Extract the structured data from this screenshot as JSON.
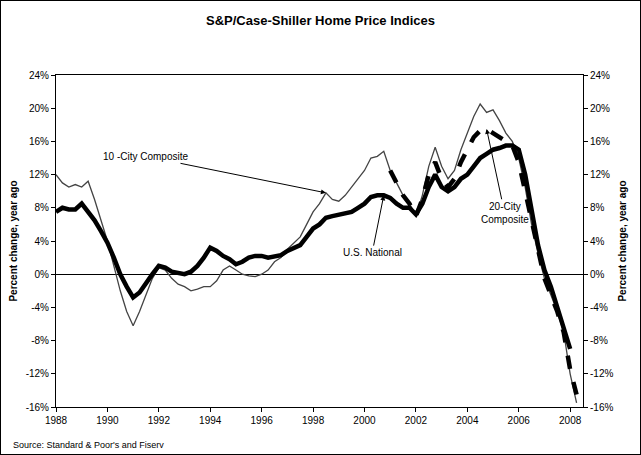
{
  "chart_data": {
    "type": "line",
    "title": "S&P/Case-Shiller Home Price Indices",
    "ylabel": "Percent change, year ago",
    "y2label": "Percent change, year ago",
    "source": "Source: Standard & Poor's and Fiserv",
    "grid": false,
    "xlim": [
      1988,
      2008.5
    ],
    "xticks": [
      1988,
      1990,
      1992,
      1994,
      1996,
      1998,
      2000,
      2002,
      2004,
      2006,
      2008
    ],
    "ylim": [
      -16,
      24
    ],
    "yticks": [
      {
        "value": -16,
        "label": "-16%"
      },
      {
        "value": -12,
        "label": "-12%"
      },
      {
        "value": -8,
        "label": "-8%"
      },
      {
        "value": -4,
        "label": "-4%"
      },
      {
        "value": 0,
        "label": "0%"
      },
      {
        "value": 4,
        "label": "4%"
      },
      {
        "value": 8,
        "label": "8%"
      },
      {
        "value": 12,
        "label": "12%"
      },
      {
        "value": 16,
        "label": "16%"
      },
      {
        "value": 20,
        "label": "20%"
      },
      {
        "value": 24,
        "label": "24%"
      }
    ],
    "y2lim": [
      -16,
      24
    ],
    "y2ticks": [
      {
        "value": -16,
        "label": "-16%"
      },
      {
        "value": -12,
        "label": "-12%"
      },
      {
        "value": -8,
        "label": "-8%"
      },
      {
        "value": -4,
        "label": "-4%"
      },
      {
        "value": 0,
        "label": "0%"
      },
      {
        "value": 4,
        "label": "4%"
      },
      {
        "value": 8,
        "label": "8%"
      },
      {
        "value": 12,
        "label": "12%"
      },
      {
        "value": 16,
        "label": "16%"
      },
      {
        "value": 20,
        "label": "20%"
      },
      {
        "value": 24,
        "label": "24%"
      }
    ],
    "x": [
      1988,
      1988.25,
      1988.5,
      1988.75,
      1989,
      1989.25,
      1989.5,
      1989.75,
      1990,
      1990.25,
      1990.5,
      1990.75,
      1991,
      1991.25,
      1991.5,
      1991.75,
      1992,
      1992.25,
      1992.5,
      1992.75,
      1993,
      1993.25,
      1993.5,
      1993.75,
      1994,
      1994.25,
      1994.5,
      1994.75,
      1995,
      1995.25,
      1995.5,
      1995.75,
      1996,
      1996.25,
      1996.5,
      1996.75,
      1997,
      1997.25,
      1997.5,
      1997.75,
      1998,
      1998.25,
      1998.5,
      1998.75,
      1999,
      1999.25,
      1999.5,
      1999.75,
      2000,
      2000.25,
      2000.5,
      2000.75,
      2001,
      2001.25,
      2001.5,
      2001.75,
      2002,
      2002.25,
      2002.5,
      2002.75,
      2003,
      2003.25,
      2003.5,
      2003.75,
      2004,
      2004.25,
      2004.5,
      2004.75,
      2005,
      2005.25,
      2005.5,
      2005.75,
      2006,
      2006.25,
      2006.5,
      2006.75,
      2007,
      2007.25,
      2007.5,
      2007.75,
      2008,
      2008.25
    ],
    "series": [
      {
        "name": "10 -City Composite",
        "color": "#444444",
        "line_style": "solid",
        "values": [
          12.0,
          11.0,
          10.5,
          10.8,
          10.5,
          11.2,
          9.0,
          6.5,
          4.0,
          1.0,
          -2.0,
          -4.5,
          -6.2,
          -4.5,
          -2.5,
          -0.5,
          0.8,
          0.5,
          -0.5,
          -1.2,
          -1.5,
          -2.0,
          -1.8,
          -1.5,
          -1.5,
          -0.8,
          0.5,
          1.0,
          0.5,
          0.0,
          -0.2,
          -0.3,
          0.0,
          0.5,
          1.5,
          2.0,
          3.0,
          3.8,
          4.5,
          6.0,
          7.5,
          8.5,
          9.8,
          9.0,
          8.8,
          9.5,
          10.5,
          11.5,
          12.5,
          14.0,
          14.2,
          14.8,
          12.5,
          11.0,
          9.5,
          8.5,
          7.0,
          9.5,
          13.0,
          15.3,
          13.0,
          11.5,
          12.5,
          15.0,
          17.0,
          19.0,
          20.5,
          19.5,
          19.8,
          18.5,
          17.0,
          16.0,
          14.0,
          10.5,
          6.0,
          2.5,
          -0.5,
          -2.5,
          -4.5,
          -7.0,
          -12.0,
          -15.5
        ]
      },
      {
        "name": "U.S. National",
        "color": "#000000",
        "line_style": "solid",
        "values": [
          7.5,
          8.0,
          7.8,
          7.8,
          8.5,
          7.5,
          6.5,
          5.2,
          3.8,
          2.0,
          0.0,
          -1.5,
          -2.8,
          -2.2,
          -1.0,
          0.0,
          1.0,
          0.8,
          0.3,
          0.2,
          0.0,
          0.3,
          1.0,
          2.0,
          3.2,
          2.8,
          2.2,
          1.8,
          1.2,
          1.5,
          2.0,
          2.2,
          2.2,
          2.0,
          2.2,
          2.3,
          2.8,
          3.2,
          3.5,
          4.5,
          5.5,
          6.0,
          6.8,
          7.0,
          7.2,
          7.3,
          7.5,
          8.0,
          8.5,
          9.3,
          9.5,
          9.5,
          9.2,
          8.5,
          8.0,
          8.0,
          7.2,
          8.5,
          10.5,
          12.0,
          10.5,
          10.0,
          10.5,
          11.5,
          12.0,
          13.0,
          14.0,
          14.5,
          15.0,
          15.2,
          15.5,
          15.5,
          15.0,
          12.0,
          7.5,
          3.5,
          0.5,
          -1.5,
          -4.0,
          -6.5,
          -9.0,
          null
        ]
      },
      {
        "name": "20-City Composite",
        "color": "#000000",
        "line_style": "dash",
        "values": [
          null,
          null,
          null,
          null,
          null,
          null,
          null,
          null,
          null,
          null,
          null,
          null,
          null,
          null,
          null,
          null,
          null,
          null,
          null,
          null,
          null,
          null,
          null,
          null,
          null,
          null,
          null,
          null,
          null,
          null,
          null,
          null,
          null,
          null,
          null,
          null,
          null,
          null,
          null,
          null,
          null,
          null,
          null,
          null,
          null,
          null,
          null,
          null,
          null,
          null,
          null,
          null,
          12.5,
          11.0,
          9.5,
          8.5,
          7.0,
          9.0,
          12.0,
          13.5,
          11.5,
          10.5,
          11.5,
          13.5,
          15.0,
          16.5,
          17.3,
          17.5,
          17.0,
          16.5,
          16.0,
          15.5,
          13.5,
          10.0,
          6.0,
          2.5,
          -0.5,
          -2.5,
          -4.5,
          -7.0,
          -11.5,
          -14.5
        ]
      }
    ]
  }
}
